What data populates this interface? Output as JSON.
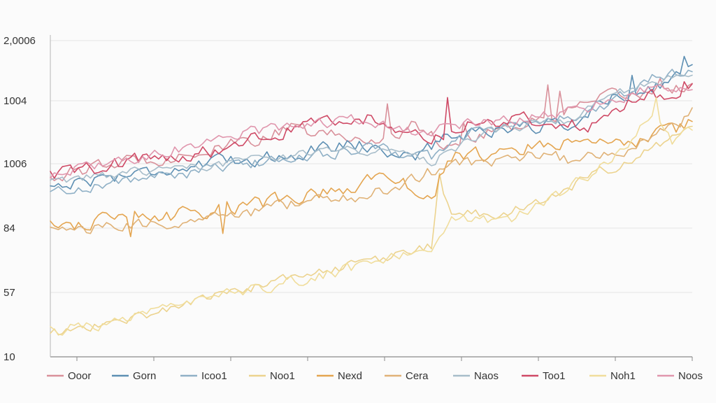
{
  "chart_data": {
    "type": "line",
    "title": "",
    "xlabel": "",
    "ylabel": "",
    "grid": true,
    "legend_position": "bottom",
    "y_tick_labels": [
      "10",
      "57",
      "84",
      "1006",
      "1004",
      "2,0006"
    ],
    "x_count": 161,
    "series": [
      {
        "name": "Ooor",
        "color": "#d9909a",
        "anchors": [
          [
            0,
            0.57
          ],
          [
            20,
            0.62
          ],
          [
            40,
            0.65
          ],
          [
            60,
            0.72
          ],
          [
            80,
            0.68
          ],
          [
            90,
            0.73
          ],
          [
            100,
            0.67
          ],
          [
            110,
            0.72
          ],
          [
            120,
            0.74
          ],
          [
            140,
            0.82
          ],
          [
            160,
            0.86
          ]
        ],
        "noise": 0.012,
        "spikes": [
          [
            84,
            0.8
          ],
          [
            103,
            0.74
          ],
          [
            124,
            0.86
          ],
          [
            127,
            0.84
          ],
          [
            152,
            0.88
          ]
        ],
        "value_labels_hidden": true
      },
      {
        "name": "Gorn",
        "color": "#5d8fb3",
        "anchors": [
          [
            0,
            0.54
          ],
          [
            20,
            0.58
          ],
          [
            40,
            0.61
          ],
          [
            60,
            0.64
          ],
          [
            75,
            0.68
          ],
          [
            90,
            0.63
          ],
          [
            100,
            0.7
          ],
          [
            110,
            0.72
          ],
          [
            120,
            0.73
          ],
          [
            130,
            0.74
          ],
          [
            140,
            0.82
          ],
          [
            150,
            0.85
          ],
          [
            160,
            0.92
          ]
        ],
        "noise": 0.012,
        "spikes": [
          [
            131,
            0.73
          ],
          [
            145,
            0.89
          ],
          [
            158,
            0.95
          ]
        ]
      },
      {
        "name": "Icoo1",
        "color": "#8fb0c6",
        "anchors": [
          [
            0,
            0.52
          ],
          [
            20,
            0.56
          ],
          [
            40,
            0.59
          ],
          [
            60,
            0.63
          ],
          [
            80,
            0.66
          ],
          [
            95,
            0.63
          ],
          [
            105,
            0.71
          ],
          [
            120,
            0.74
          ],
          [
            135,
            0.77
          ],
          [
            150,
            0.88
          ],
          [
            160,
            0.91
          ]
        ],
        "noise": 0.01,
        "spikes": []
      },
      {
        "name": "Noo1",
        "color": "#ecd38e",
        "anchors": [
          [
            0,
            0.07
          ],
          [
            20,
            0.12
          ],
          [
            40,
            0.19
          ],
          [
            60,
            0.25
          ],
          [
            80,
            0.3
          ],
          [
            95,
            0.35
          ],
          [
            97,
            0.57
          ],
          [
            100,
            0.45
          ],
          [
            110,
            0.45
          ],
          [
            120,
            0.48
          ],
          [
            130,
            0.54
          ],
          [
            140,
            0.6
          ],
          [
            150,
            0.66
          ],
          [
            160,
            0.72
          ]
        ],
        "noise": 0.009,
        "spikes": [
          [
            97,
            0.58
          ]
        ]
      },
      {
        "name": "Nexd",
        "color": "#e4a550",
        "anchors": [
          [
            0,
            0.42
          ],
          [
            20,
            0.43
          ],
          [
            40,
            0.46
          ],
          [
            60,
            0.5
          ],
          [
            75,
            0.53
          ],
          [
            82,
            0.58
          ],
          [
            90,
            0.53
          ],
          [
            96,
            0.53
          ],
          [
            99,
            0.63
          ],
          [
            110,
            0.64
          ],
          [
            120,
            0.67
          ],
          [
            130,
            0.68
          ],
          [
            140,
            0.66
          ],
          [
            150,
            0.69
          ],
          [
            160,
            0.74
          ]
        ],
        "noise": 0.013,
        "spikes": [
          [
            20,
            0.38
          ],
          [
            21,
            0.46
          ],
          [
            43,
            0.39
          ]
        ]
      },
      {
        "name": "Cera",
        "color": "#e0b277",
        "anchors": [
          [
            0,
            0.4
          ],
          [
            20,
            0.41
          ],
          [
            40,
            0.44
          ],
          [
            60,
            0.48
          ],
          [
            80,
            0.51
          ],
          [
            98,
            0.6
          ],
          [
            105,
            0.61
          ],
          [
            120,
            0.64
          ],
          [
            132,
            0.62
          ],
          [
            145,
            0.66
          ],
          [
            155,
            0.72
          ],
          [
            160,
            0.77
          ]
        ],
        "noise": 0.011,
        "spikes": []
      },
      {
        "name": "Naos",
        "color": "#a7bdca",
        "anchors": [
          [
            0,
            0.55
          ],
          [
            25,
            0.59
          ],
          [
            50,
            0.62
          ],
          [
            75,
            0.66
          ],
          [
            95,
            0.62
          ],
          [
            110,
            0.72
          ],
          [
            130,
            0.75
          ],
          [
            145,
            0.85
          ],
          [
            160,
            0.89
          ]
        ],
        "noise": 0.008,
        "spikes": []
      },
      {
        "name": "Too1",
        "color": "#cf4a66",
        "anchors": [
          [
            0,
            0.57
          ],
          [
            20,
            0.62
          ],
          [
            40,
            0.65
          ],
          [
            60,
            0.72
          ],
          [
            80,
            0.76
          ],
          [
            88,
            0.72
          ],
          [
            96,
            0.7
          ],
          [
            105,
            0.74
          ],
          [
            120,
            0.75
          ],
          [
            135,
            0.73
          ],
          [
            145,
            0.82
          ],
          [
            155,
            0.83
          ],
          [
            160,
            0.88
          ]
        ],
        "noise": 0.012,
        "spikes": [
          [
            99,
            0.82
          ],
          [
            136,
            0.74
          ],
          [
            158,
            0.87
          ]
        ]
      },
      {
        "name": "Noh1",
        "color": "#f0dd9c",
        "anchors": [
          [
            0,
            0.08
          ],
          [
            20,
            0.12
          ],
          [
            40,
            0.18
          ],
          [
            60,
            0.24
          ],
          [
            80,
            0.29
          ],
          [
            96,
            0.36
          ],
          [
            100,
            0.43
          ],
          [
            115,
            0.44
          ],
          [
            128,
            0.52
          ],
          [
            140,
            0.63
          ],
          [
            150,
            0.76
          ],
          [
            155,
            0.68
          ],
          [
            160,
            0.72
          ]
        ],
        "noise": 0.01,
        "spikes": [
          [
            151,
            0.82
          ]
        ]
      },
      {
        "name": "Noos",
        "color": "#e096ad",
        "anchors": [
          [
            0,
            0.58
          ],
          [
            25,
            0.64
          ],
          [
            50,
            0.71
          ],
          [
            75,
            0.75
          ],
          [
            90,
            0.71
          ],
          [
            100,
            0.73
          ],
          [
            115,
            0.75
          ],
          [
            128,
            0.77
          ],
          [
            140,
            0.81
          ],
          [
            150,
            0.85
          ],
          [
            160,
            0.86
          ]
        ],
        "noise": 0.01,
        "spikes": []
      }
    ]
  }
}
